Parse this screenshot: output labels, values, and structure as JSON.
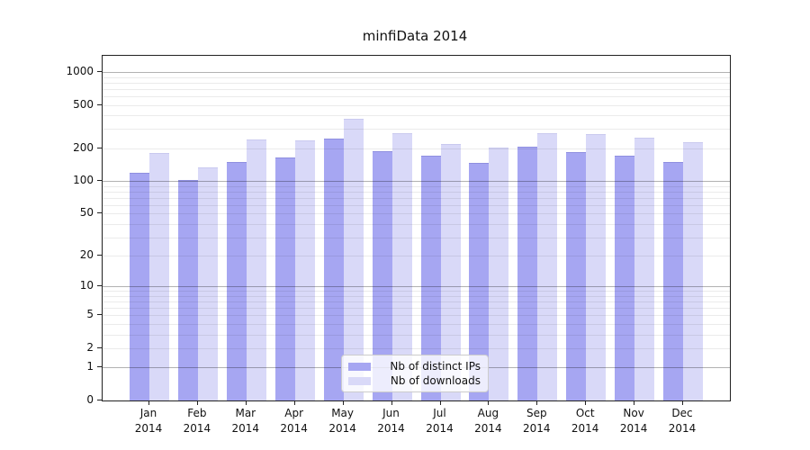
{
  "chart_data": {
    "type": "bar",
    "title": "minfiData 2014",
    "scale": "log1p",
    "grid": "on",
    "legend_position": "inside-bottom-center",
    "categories": [
      "Jan",
      "Feb",
      "Mar",
      "Apr",
      "May",
      "Jun",
      "Jul",
      "Aug",
      "Sep",
      "Oct",
      "Nov",
      "Dec"
    ],
    "category_year": "2014",
    "series": [
      {
        "name": "Nb of distinct IPs",
        "color": "#a6a6f2",
        "edge_color": "#8f8fe0",
        "values": [
          120,
          103,
          151,
          164,
          244,
          188,
          172,
          147,
          208,
          185,
          171,
          150
        ]
      },
      {
        "name": "Nb of downloads",
        "color": "#d9d9f8",
        "edge_color": "#c9c9ef",
        "values": [
          181,
          133,
          243,
          238,
          374,
          274,
          218,
          205,
          273,
          268,
          249,
          226
        ]
      }
    ],
    "yticks": [
      0,
      1,
      2,
      5,
      10,
      20,
      50,
      100,
      200,
      500,
      1000
    ],
    "ylim": [
      0,
      1404
    ],
    "xlabel": "",
    "ylabel": ""
  }
}
